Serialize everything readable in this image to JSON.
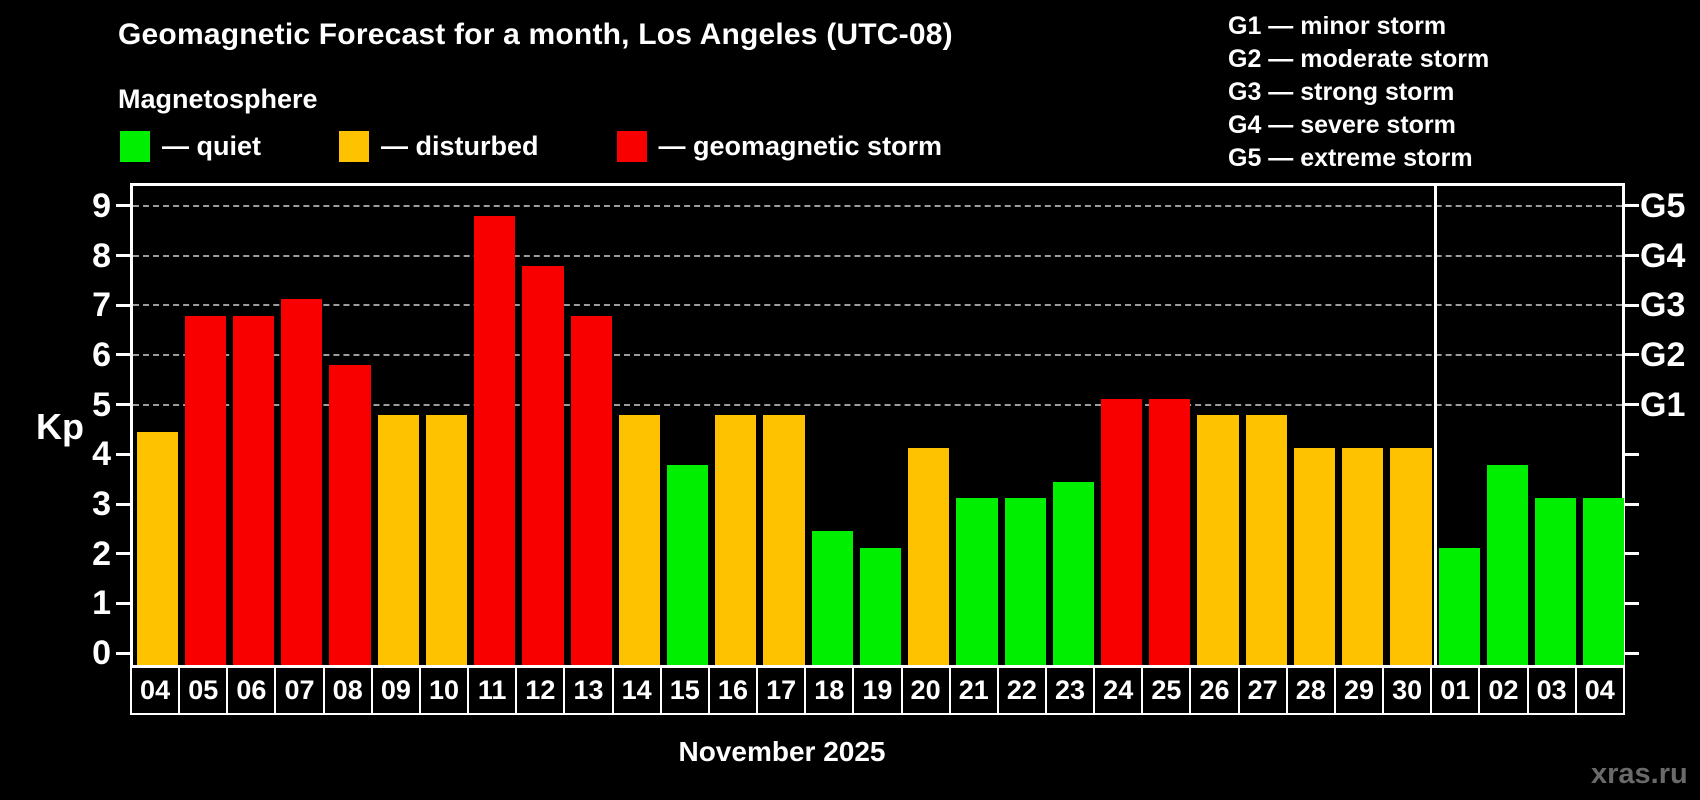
{
  "header": {
    "title": "Geomagnetic Forecast for a month, Los Angeles (UTC-08)",
    "subtitle": "Magnetosphere"
  },
  "legend": {
    "items": [
      {
        "key": "quiet",
        "label": "— quiet",
        "color": "#00ee00"
      },
      {
        "key": "disturbed",
        "label": "— disturbed",
        "color": "#ffc200"
      },
      {
        "key": "storm",
        "label": "— geomagnetic storm",
        "color": "#f80000"
      }
    ]
  },
  "storm_scale_legend": {
    "lines": [
      "G1 — minor storm",
      "G2 — moderate storm",
      "G3 — strong storm",
      "G4 — severe storm",
      "G5 — extreme storm"
    ]
  },
  "axes": {
    "y_label": "Kp",
    "y_ticks": [
      0,
      1,
      2,
      3,
      4,
      5,
      6,
      7,
      8,
      9
    ],
    "right_labels": [
      {
        "kp": 5,
        "text": "G1"
      },
      {
        "kp": 6,
        "text": "G2"
      },
      {
        "kp": 7,
        "text": "G3"
      },
      {
        "kp": 8,
        "text": "G4"
      },
      {
        "kp": 9,
        "text": "G5"
      }
    ],
    "x_month_label": "November 2025"
  },
  "chart_data": {
    "type": "bar",
    "title": "Geomagnetic Forecast for a month, Los Angeles (UTC-08)",
    "xlabel": "November 2025",
    "ylabel": "Kp",
    "ylim": [
      -0.36,
      9.4
    ],
    "grid": "dashed horizontal at storm levels only",
    "gridlines_at_kp": [
      5,
      6,
      7,
      8,
      9
    ],
    "legend_position": "top-left",
    "categories": [
      "04",
      "05",
      "06",
      "07",
      "08",
      "09",
      "10",
      "11",
      "12",
      "13",
      "14",
      "15",
      "16",
      "17",
      "18",
      "19",
      "20",
      "21",
      "22",
      "23",
      "24",
      "25",
      "26",
      "27",
      "28",
      "29",
      "30",
      "01",
      "02",
      "03",
      "04"
    ],
    "values": [
      4.33,
      6.67,
      6.67,
      7.0,
      5.67,
      4.67,
      4.67,
      8.67,
      7.67,
      6.67,
      4.67,
      3.67,
      4.67,
      4.67,
      2.33,
      2.0,
      4.0,
      3.0,
      3.0,
      3.33,
      5.0,
      5.0,
      4.67,
      4.67,
      4.0,
      4.0,
      4.0,
      2.0,
      3.67,
      3.0,
      3.0
    ],
    "states": [
      "disturbed",
      "storm",
      "storm",
      "storm",
      "storm",
      "disturbed",
      "disturbed",
      "storm",
      "storm",
      "storm",
      "disturbed",
      "quiet",
      "disturbed",
      "disturbed",
      "quiet",
      "quiet",
      "disturbed",
      "quiet",
      "quiet",
      "quiet",
      "storm",
      "storm",
      "disturbed",
      "disturbed",
      "disturbed",
      "disturbed",
      "disturbed",
      "quiet",
      "quiet",
      "quiet",
      "quiet"
    ],
    "state_colors": {
      "quiet": "#00ee00",
      "disturbed": "#ffc200",
      "storm": "#f80000"
    },
    "month_boundary_after_index": 26
  },
  "watermark": "xras.ru"
}
